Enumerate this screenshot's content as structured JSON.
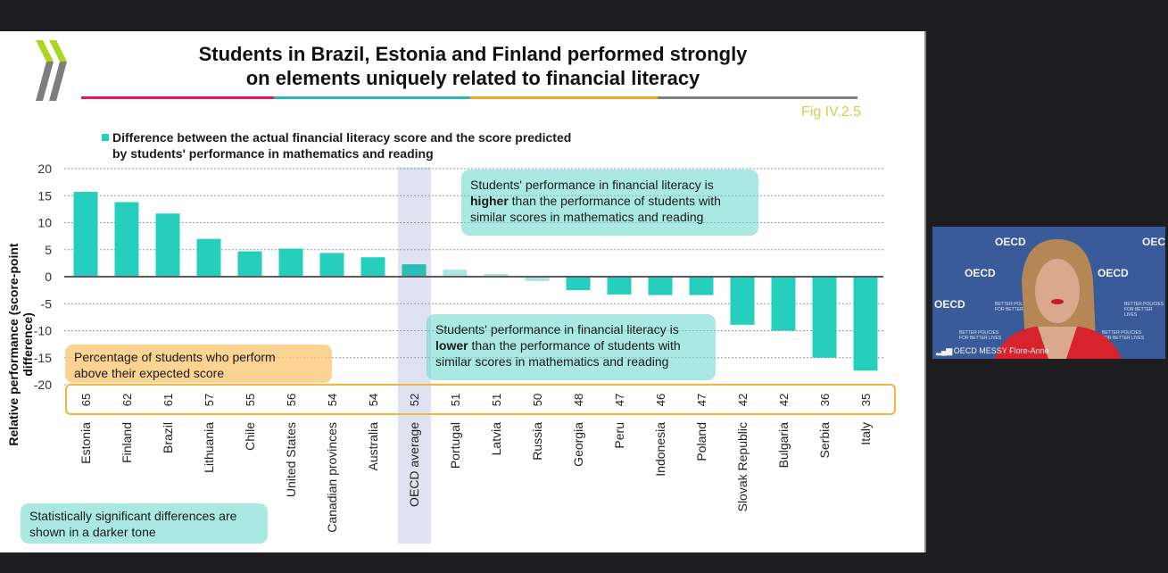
{
  "slide": {
    "title_line1": "Students in Brazil, Estonia and Finland performed strongly",
    "title_line2": "on elements uniquely related to financial literacy",
    "figure_ref": "Fig IV.2.5",
    "rule_colors": [
      "#e8185c",
      "#2bb5c0",
      "#f4a81c",
      "#7f7f7f"
    ],
    "logo": "oecd-logo"
  },
  "chart_data": {
    "type": "bar",
    "title": "Students in Brazil, Estonia and Finland performed strongly on elements uniquely related to financial literacy",
    "legend": [
      {
        "label_line1": "Difference between the actual financial literacy score and the score predicted",
        "label_line2": "by students' performance in mathematics and reading",
        "color": "#26cfbd"
      }
    ],
    "legend_position": "top-left",
    "xlabel": "",
    "ylabel": "Relative performance (score-point difference)",
    "ylim": [
      -20,
      20
    ],
    "yticks": [
      20,
      15,
      10,
      5,
      0,
      -5,
      -10,
      -15,
      -20
    ],
    "grid": true,
    "categories": [
      "Estonia",
      "Finland",
      "Brazil",
      "Lithuania",
      "Chile",
      "United States",
      "Canadian provinces",
      "Australia",
      "OECD average",
      "Portugal",
      "Latvia",
      "Russia",
      "Georgia",
      "Peru",
      "Indonesia",
      "Poland",
      "Slovak Republic",
      "Bulgaria",
      "Serbia",
      "Italy"
    ],
    "values": [
      15.7,
      13.8,
      11.7,
      7.0,
      4.7,
      5.2,
      4.4,
      3.6,
      2.3,
      1.3,
      0.5,
      -0.8,
      -2.5,
      -3.3,
      -3.4,
      -3.4,
      -8.9,
      -10.0,
      -15.0,
      -17.4
    ],
    "significant": [
      true,
      true,
      true,
      true,
      true,
      true,
      true,
      true,
      true,
      false,
      false,
      false,
      true,
      true,
      true,
      true,
      true,
      true,
      true,
      true
    ],
    "highlight_category": "OECD average",
    "percent_above_expected": {
      "label_line1": "Percentage of students who perform",
      "label_line2": "above their expected score",
      "values": [
        65,
        62,
        61,
        57,
        55,
        56,
        54,
        54,
        52,
        51,
        51,
        50,
        48,
        47,
        46,
        47,
        42,
        42,
        36,
        35
      ]
    },
    "annotations": {
      "higher": {
        "pre": "Students' performance in financial literacy is",
        "bold": "higher",
        "post": " than the performance of students with",
        "line3": "similar scores in mathematics and reading"
      },
      "lower": {
        "pre": "Students' performance in financial literacy is",
        "bold": "lower",
        "post": " than the performance of students with",
        "line3": "similar scores in mathematics and reading"
      },
      "significance_line1": "Statistically significant differences are",
      "significance_line2": "shown in a darker tone"
    },
    "colors": {
      "significant": "#26cfbd",
      "non_significant": "#a8e8e0",
      "oecd_bar": "#2bbcb8",
      "highlight_band": "#dfe2f1",
      "pct_box_border": "#f2b43c"
    }
  },
  "video": {
    "participant_name": "OECD MESSY Flore-Anne",
    "brand": "OECD",
    "backdrop_tagline_1": "BETTER POLICIES",
    "backdrop_tagline_2": "FOR BETTER LIVES"
  }
}
